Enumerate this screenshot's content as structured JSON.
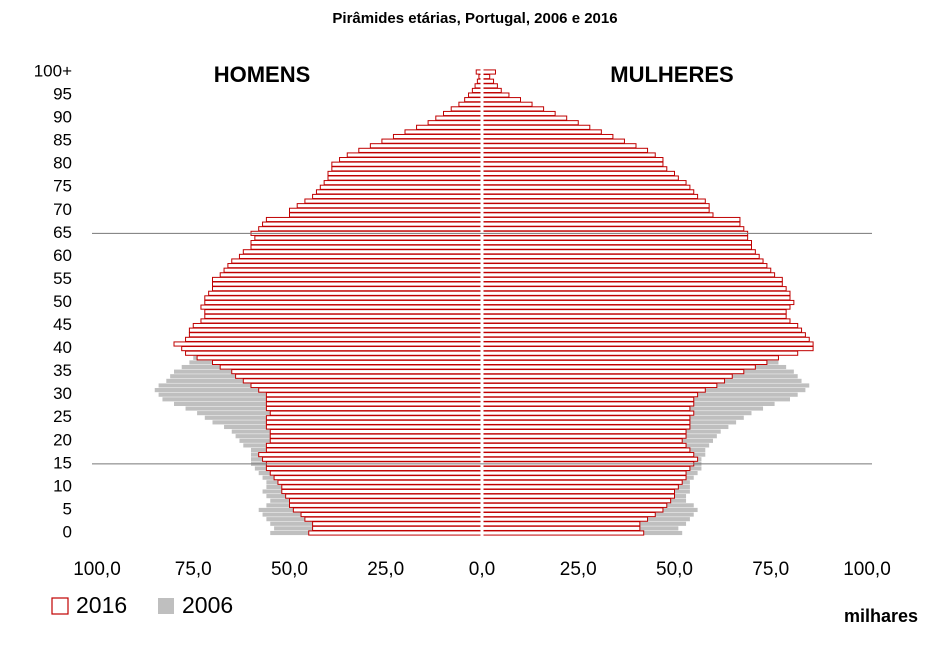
{
  "chart_data": {
    "type": "pyramid",
    "title": "Pirâmides etárias, Portugal, 2006 e 2016",
    "groups": [
      "HOMENS",
      "MULHERES"
    ],
    "xlabel": "milhares",
    "categories": [
      "0",
      null,
      null,
      null,
      null,
      "5",
      null,
      null,
      null,
      null,
      "10",
      null,
      null,
      null,
      null,
      "15",
      null,
      null,
      null,
      null,
      "20",
      null,
      null,
      null,
      null,
      "25",
      null,
      null,
      null,
      null,
      "30",
      null,
      null,
      null,
      null,
      "35",
      null,
      null,
      null,
      null,
      "40",
      null,
      null,
      null,
      null,
      "45",
      null,
      null,
      null,
      null,
      "50",
      null,
      null,
      null,
      null,
      "55",
      null,
      null,
      null,
      null,
      "60",
      null,
      null,
      null,
      null,
      "65",
      null,
      null,
      null,
      null,
      "70",
      null,
      null,
      null,
      null,
      "75",
      null,
      null,
      null,
      null,
      "80",
      null,
      null,
      null,
      null,
      "85",
      null,
      null,
      null,
      null,
      "90",
      null,
      null,
      null,
      null,
      "95",
      null,
      null,
      null,
      null,
      "100+"
    ],
    "xlim": [
      0,
      100
    ],
    "xticks": [
      {
        "value": 0,
        "label": "0,0"
      },
      {
        "value": 25,
        "label": "25,0"
      },
      {
        "value": 50,
        "label": "50,0"
      },
      {
        "value": 75,
        "label": "75,0"
      },
      {
        "value": 100,
        "label": "100,0"
      }
    ],
    "reference_lines": [
      15,
      65
    ],
    "series": [
      {
        "name": "2016",
        "color": "#c00000",
        "style": "outline",
        "values": [
          [
            45,
            44,
            44,
            46,
            47,
            49,
            50,
            50,
            51,
            52,
            52,
            53,
            54,
            55,
            56,
            56,
            57,
            58,
            56,
            56,
            55,
            55,
            55,
            56,
            56,
            56,
            55,
            56,
            56,
            56,
            56,
            58,
            60,
            62,
            64,
            65,
            68,
            70,
            74,
            77,
            78,
            80,
            77,
            76,
            76,
            75,
            73,
            72,
            72,
            73,
            72,
            72,
            71,
            70,
            70,
            70,
            68,
            67,
            66,
            65,
            63,
            62,
            60,
            60,
            59,
            60,
            58,
            57,
            56,
            50,
            50,
            48,
            46,
            44,
            43,
            42,
            41,
            40,
            40,
            39,
            39,
            37,
            35,
            32,
            29,
            26,
            23,
            20,
            17,
            14,
            12,
            10,
            8,
            6,
            4.5,
            3.5,
            2.5,
            1.8,
            1.2,
            0.8,
            1.5
          ],
          [
            42,
            41,
            41,
            43,
            45,
            47,
            48,
            49,
            50,
            50,
            51,
            52,
            53,
            53,
            54,
            55,
            56,
            55,
            54,
            53,
            52,
            53,
            53,
            54,
            54,
            54,
            55,
            54,
            55,
            55,
            56,
            58,
            61,
            63,
            65,
            68,
            71,
            74,
            77,
            82,
            86,
            86,
            85,
            84,
            83,
            82,
            80,
            79,
            79,
            80,
            81,
            80,
            80,
            79,
            78,
            78,
            76,
            75,
            74,
            73,
            72,
            71,
            70,
            70,
            69,
            69,
            68,
            67,
            67,
            60,
            59,
            59,
            58,
            56,
            55,
            54,
            53,
            51,
            50,
            48,
            47,
            47,
            45,
            43,
            40,
            37,
            34,
            31,
            28,
            25,
            22,
            19,
            16,
            13,
            10,
            7,
            5,
            4,
            3,
            2,
            3.5
          ]
        ]
      },
      {
        "name": "2006",
        "color": "#bfbfbf",
        "style": "filled",
        "values": [
          [
            55,
            54,
            55,
            56,
            57,
            58,
            56,
            55,
            56,
            57,
            56,
            56,
            57,
            58,
            59,
            60,
            60,
            60,
            60,
            62,
            63,
            64,
            65,
            67,
            70,
            72,
            74,
            77,
            80,
            83,
            84,
            85,
            84,
            82,
            81,
            80,
            78,
            76,
            75,
            74,
            74,
            75,
            74,
            73,
            72,
            70,
            69,
            68,
            67,
            66,
            65,
            64,
            63,
            62,
            61,
            62,
            61,
            59,
            56,
            55,
            56,
            54,
            52,
            50,
            49,
            48,
            47,
            47,
            46,
            45,
            46,
            44,
            42,
            40,
            39,
            38,
            36,
            35,
            33,
            31,
            28,
            24,
            22,
            20,
            17,
            15,
            12,
            10,
            8,
            6,
            5,
            4,
            3,
            2,
            1.5,
            1,
            0.7,
            0.5,
            0.3,
            0.2,
            0.3
          ],
          [
            52,
            51,
            53,
            54,
            55,
            56,
            55,
            53,
            53,
            54,
            54,
            54,
            55,
            56,
            57,
            57,
            57,
            58,
            58,
            59,
            60,
            61,
            62,
            64,
            66,
            68,
            70,
            73,
            76,
            80,
            82,
            84,
            85,
            83,
            82,
            81,
            79,
            77,
            76,
            76,
            77,
            78,
            77,
            77,
            76,
            75,
            74,
            73,
            72,
            71,
            70,
            69,
            68,
            68,
            67,
            68,
            67,
            66,
            63,
            62,
            63,
            62,
            60,
            58,
            57,
            57,
            56,
            57,
            56,
            55,
            57,
            55,
            54,
            52,
            51,
            51,
            49,
            47,
            46,
            44,
            41,
            37,
            35,
            33,
            30,
            27,
            24,
            21,
            18,
            15,
            12,
            10,
            7,
            5,
            4,
            3,
            2,
            1.5,
            1,
            0.7,
            1
          ]
        ]
      }
    ]
  }
}
